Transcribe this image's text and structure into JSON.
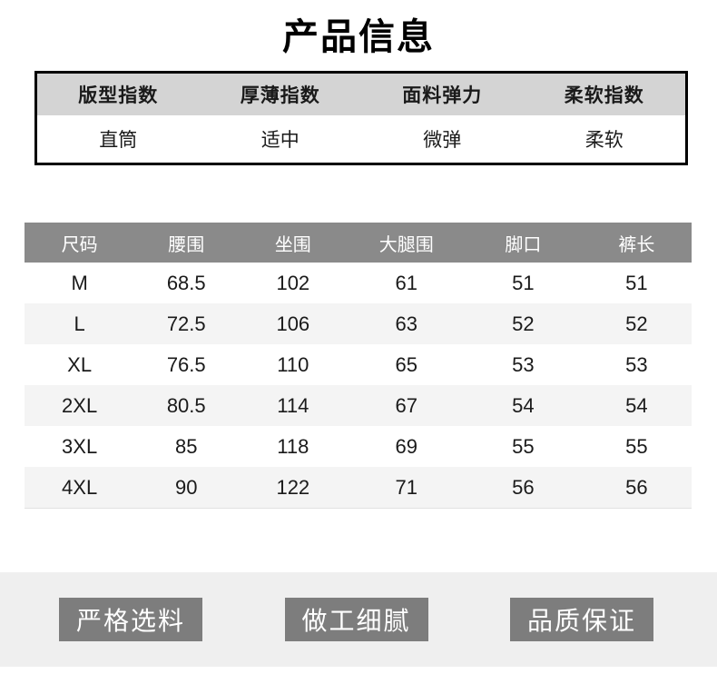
{
  "page": {
    "title": "产品信息"
  },
  "attributes_table": {
    "headers": [
      "版型指数",
      "厚薄指数",
      "面料弹力",
      "柔软指数"
    ],
    "values": [
      "直筒",
      "适中",
      "微弹",
      "柔软"
    ]
  },
  "size_table": {
    "headers": [
      "尺码",
      "腰围",
      "坐围",
      "大腿围",
      "脚口",
      "裤长"
    ],
    "rows": [
      [
        "M",
        "68.5",
        "102",
        "61",
        "51",
        "51"
      ],
      [
        "L",
        "72.5",
        "106",
        "63",
        "52",
        "52"
      ],
      [
        "XL",
        "76.5",
        "110",
        "65",
        "53",
        "53"
      ],
      [
        "2XL",
        "80.5",
        "114",
        "67",
        "54",
        "54"
      ],
      [
        "3XL",
        "85",
        "118",
        "69",
        "55",
        "55"
      ],
      [
        "4XL",
        "90",
        "122",
        "71",
        "56",
        "56"
      ]
    ]
  },
  "footer": {
    "badges": [
      "严格选料",
      "做工细腻",
      "品质保证"
    ]
  },
  "colors": {
    "attr_header_bg": "#d4d4d4",
    "size_header_bg": "#8a8a8a",
    "row_alt_bg": "#f4f4f4",
    "footer_bg": "#efefef",
    "badge_bg": "#7d7d7d",
    "border_color": "#000000",
    "text_color": "#1a1a1a"
  }
}
